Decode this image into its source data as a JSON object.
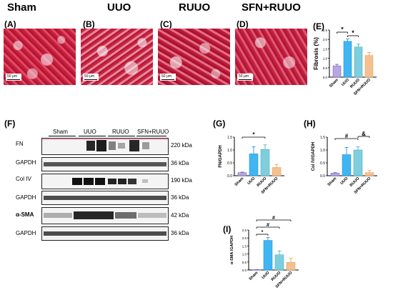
{
  "groups": [
    "Sham",
    "UUO",
    "RUUO",
    "SFN+RUUO"
  ],
  "micro_panels": [
    {
      "letter": "(A)",
      "scale": "50 μm"
    },
    {
      "letter": "(B)",
      "scale": "50 μm"
    },
    {
      "letter": "(C)",
      "scale": "50 μm"
    },
    {
      "letter": "(D)",
      "scale": "50 μm"
    }
  ],
  "panel_letters": {
    "E": "(E)",
    "F": "(F)",
    "G": "(G)",
    "H": "(H)",
    "I": "(I)"
  },
  "western_blot": {
    "group_headers": [
      "Sham",
      "UUO",
      "RUUO",
      "SFN+RUUO"
    ],
    "rows": [
      {
        "label": "FN",
        "kda": "220 kDa",
        "bold": false
      },
      {
        "label": "GAPDH",
        "kda": "36 kDa",
        "bold": false
      },
      {
        "label": "Col IV",
        "kda": "190 kDa",
        "bold": false
      },
      {
        "label": "GAPDH",
        "kda": "36 kDa",
        "bold": false
      },
      {
        "label": "α-SMA",
        "kda": "42 kDa",
        "bold": true
      },
      {
        "label": "GAPDH",
        "kda": "36 kDa",
        "bold": false
      }
    ]
  },
  "colors": {
    "sham": "#b7a6e0",
    "uuo": "#3fb6f2",
    "ruuo": "#7fcede",
    "sfn_ruuo": "#f5c08f",
    "stain": "#c82a45"
  },
  "chart_data": [
    {
      "panel": "E",
      "type": "bar",
      "categories": [
        "Sham",
        "UUO",
        "RUUO",
        "SFN+RUUO"
      ],
      "values": [
        0.6,
        1.9,
        1.6,
        1.15
      ],
      "errors": [
        0.08,
        0.12,
        0.15,
        0.15
      ],
      "ylabel": "Fibrosis (%)",
      "ylim": [
        0,
        2.5
      ],
      "yticks": [
        "0.0",
        "0.5",
        "1.0",
        "1.5",
        "2.0",
        "2.5"
      ],
      "significance": [
        {
          "from": 0,
          "to": 1,
          "symbol": "*"
        },
        {
          "from": 1,
          "to": 2,
          "symbol": "*"
        }
      ]
    },
    {
      "panel": "G",
      "type": "bar",
      "categories": [
        "Sham",
        "UUO",
        "RUUO",
        "SFN+RUUO"
      ],
      "values": [
        0.12,
        0.85,
        1.02,
        0.32
      ],
      "errors": [
        0.02,
        0.28,
        0.18,
        0.12
      ],
      "ylabel": "FN/GAPDH",
      "ylim": [
        0,
        1.5
      ],
      "yticks": [
        "0.0",
        "0.5",
        "1.0",
        "1.5"
      ],
      "significance": [
        {
          "from": 0,
          "to": 2,
          "symbol": "*"
        }
      ]
    },
    {
      "panel": "H",
      "type": "bar",
      "categories": [
        "Sham",
        "UUO",
        "RUUO",
        "SFN+RUUO"
      ],
      "values": [
        0.1,
        0.82,
        1.0,
        0.12
      ],
      "errors": [
        0.02,
        0.28,
        0.12,
        0.08
      ],
      "ylabel": "Col IV/GAPDH",
      "ylim": [
        0,
        1.5
      ],
      "yticks": [
        "0.0",
        "0.5",
        "1.0",
        "1.5"
      ],
      "significance": [
        {
          "from": 0,
          "to": 2,
          "symbol": "#"
        },
        {
          "from": 2,
          "to": 3,
          "symbol": "&"
        }
      ]
    },
    {
      "panel": "I",
      "type": "bar",
      "categories": [
        "Sham",
        "UUO",
        "RUUO",
        "SFN+RUUO"
      ],
      "values": [
        0.02,
        1.85,
        0.95,
        0.48
      ],
      "errors": [
        0.01,
        0.18,
        0.25,
        0.25
      ],
      "ylabel": "α-SMA /GAPDH",
      "ylim": [
        0,
        2.5
      ],
      "yticks": [
        "0.0",
        "0.5",
        "1.0",
        "1.5",
        "2.0",
        "2.5"
      ],
      "significance": [
        {
          "from": 0,
          "to": 1,
          "symbol": "*"
        },
        {
          "from": 0,
          "to": 2,
          "symbol": "#"
        },
        {
          "from": 0,
          "to": 3,
          "symbol": "#"
        }
      ]
    }
  ]
}
